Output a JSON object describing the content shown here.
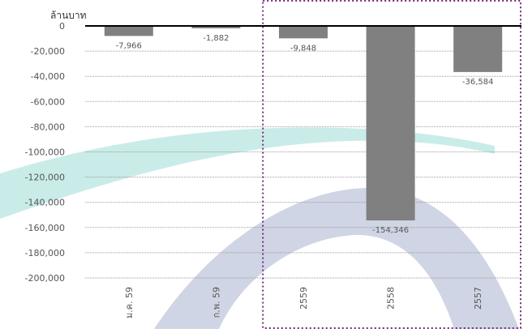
{
  "chart_data": {
    "type": "bar",
    "unit_label": "ล้านบาท",
    "categories": [
      "ม.ค. 59",
      "ก.พ. 59",
      "2559",
      "2558",
      "2557"
    ],
    "values": [
      -7966,
      -1882,
      -9848,
      -154346,
      -36584
    ],
    "value_labels": [
      "-7,966",
      "-1,882",
      "-9,848",
      "-154,346",
      "-36,584"
    ],
    "yticks": [
      0,
      -20000,
      -40000,
      -60000,
      -80000,
      -100000,
      -120000,
      -140000,
      -160000,
      -180000,
      -200000
    ],
    "ytick_labels": [
      "0",
      "-20,000",
      "-40,000",
      "-60,000",
      "-80,000",
      "-100,000",
      "-120,000",
      "-140,000",
      "-160,000",
      "-180,000",
      "-200,000"
    ],
    "ylim": [
      -200000,
      0
    ],
    "grid": true,
    "legend": "none",
    "highlight_categories": [
      "2559",
      "2558",
      "2557"
    ],
    "colors": {
      "bar": "#808080",
      "grid": "#9a9a9a",
      "zero_line": "#000000",
      "highlight_box": "#7a2a7a",
      "watermark_teal": "#bfe9e4",
      "watermark_navy": "#c7cedf"
    }
  }
}
